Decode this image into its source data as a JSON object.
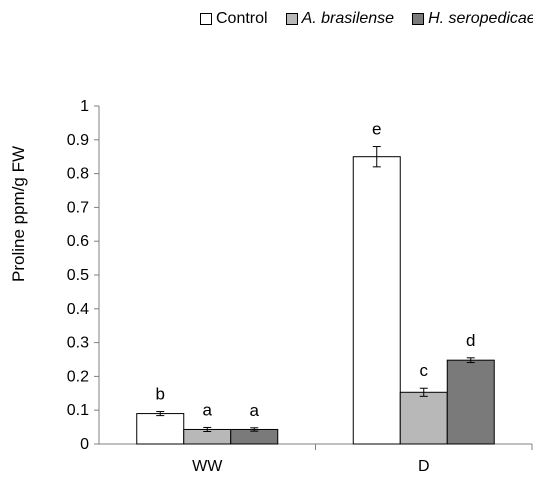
{
  "chart_data": {
    "type": "bar",
    "title": "",
    "xlabel": "",
    "ylabel": "Proline ppm/g FW",
    "ylim": [
      0,
      1
    ],
    "yticks": [
      "0",
      "0.1",
      "0.2",
      "0.3",
      "0.4",
      "0.5",
      "0.6",
      "0.7",
      "0.8",
      "0.9",
      "1"
    ],
    "grid": false,
    "legend_position": "top",
    "categories": [
      "WW",
      "D"
    ],
    "series": [
      {
        "name": "Control",
        "color": "#ffffff",
        "values": [
          0.09,
          0.85
        ],
        "errors": [
          0.006,
          0.03
        ],
        "labels": [
          "b",
          "e"
        ]
      },
      {
        "name": "A. brasilense",
        "color": "#b8b8b8",
        "values": [
          0.043,
          0.153
        ],
        "errors": [
          0.006,
          0.012
        ],
        "labels": [
          "a",
          "c"
        ]
      },
      {
        "name": "H. seropedicae",
        "color": "#7a7a7a",
        "values": [
          0.043,
          0.248
        ],
        "errors": [
          0.005,
          0.007
        ],
        "labels": [
          "a",
          "d"
        ]
      }
    ]
  }
}
